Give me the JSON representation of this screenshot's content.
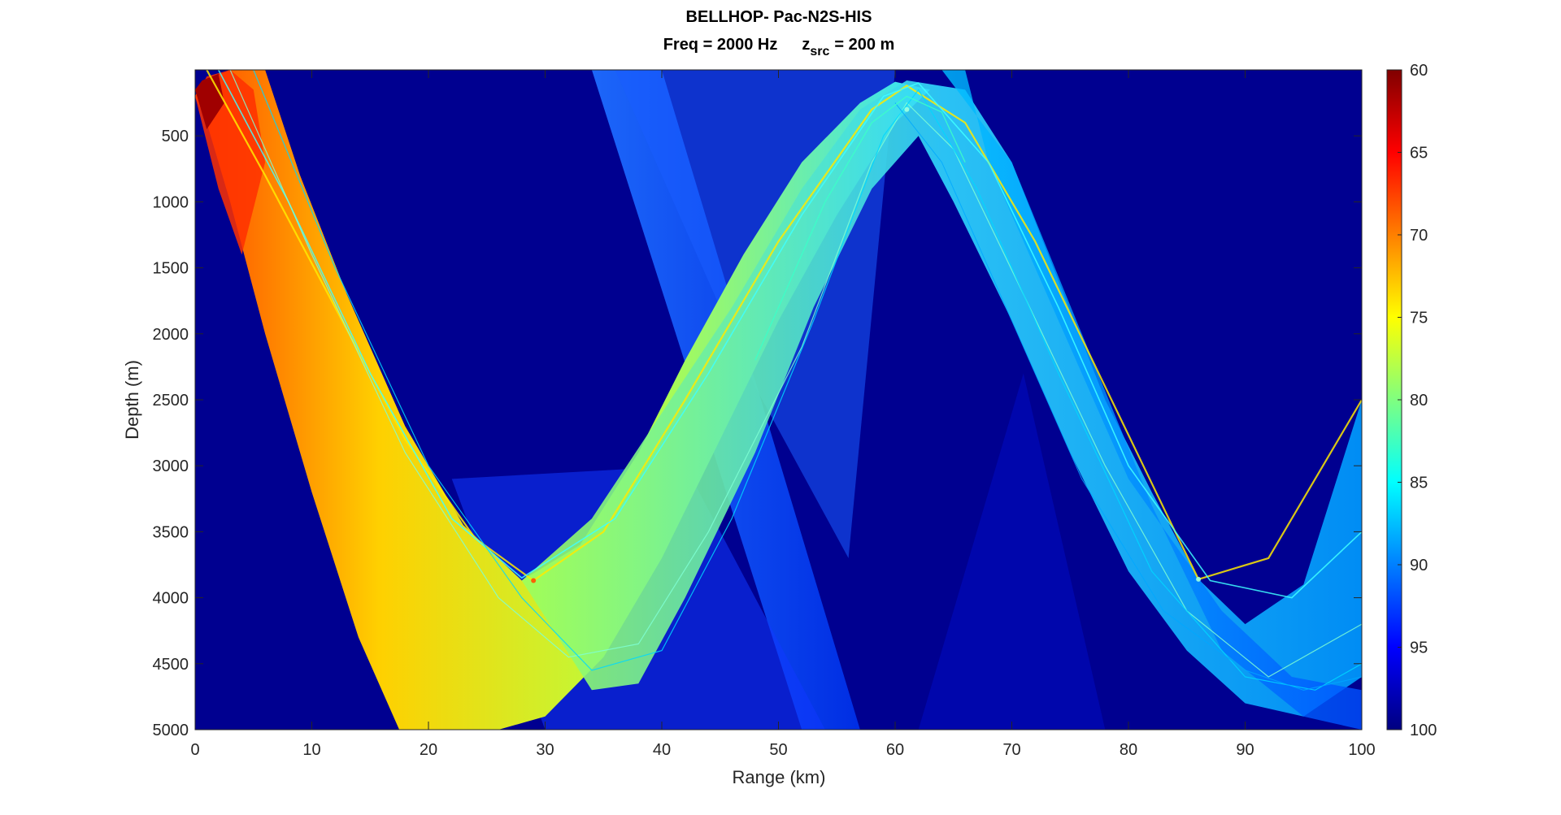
{
  "chart_data": {
    "type": "heatmap",
    "title": "BELLHOP- Pac-N2S-HIS",
    "subtitle": {
      "freq": "Freq = 2000 Hz",
      "zsrc_sym": "z",
      "zsrc_sub": "src",
      "zsrc_val": "= 200 m"
    },
    "xlabel": "Range (km)",
    "ylabel": "Depth (m)",
    "xlim": [
      0,
      100
    ],
    "ylim": [
      5000,
      0
    ],
    "xticks": [
      0,
      10,
      20,
      30,
      40,
      50,
      60,
      70,
      80,
      90,
      100
    ],
    "yticks": [
      500,
      1000,
      1500,
      2000,
      2500,
      3000,
      3500,
      4000,
      4500,
      5000
    ],
    "colorbar": {
      "range": [
        60,
        100
      ],
      "ticks": [
        60,
        65,
        70,
        75,
        80,
        85,
        90,
        95,
        100
      ],
      "colormap": "jet",
      "reversed": true
    },
    "source": {
      "range_km": 0,
      "depth_m": 200
    },
    "convergence_zones": [
      {
        "range_km": 29,
        "depth_m": 3870,
        "level_dB": 75
      },
      {
        "range_km": 61,
        "depth_m": 300,
        "level_dB": 82
      },
      {
        "range_km": 86,
        "depth_m": 3860,
        "level_dB": 85
      }
    ],
    "background_level_dB": 100
  }
}
